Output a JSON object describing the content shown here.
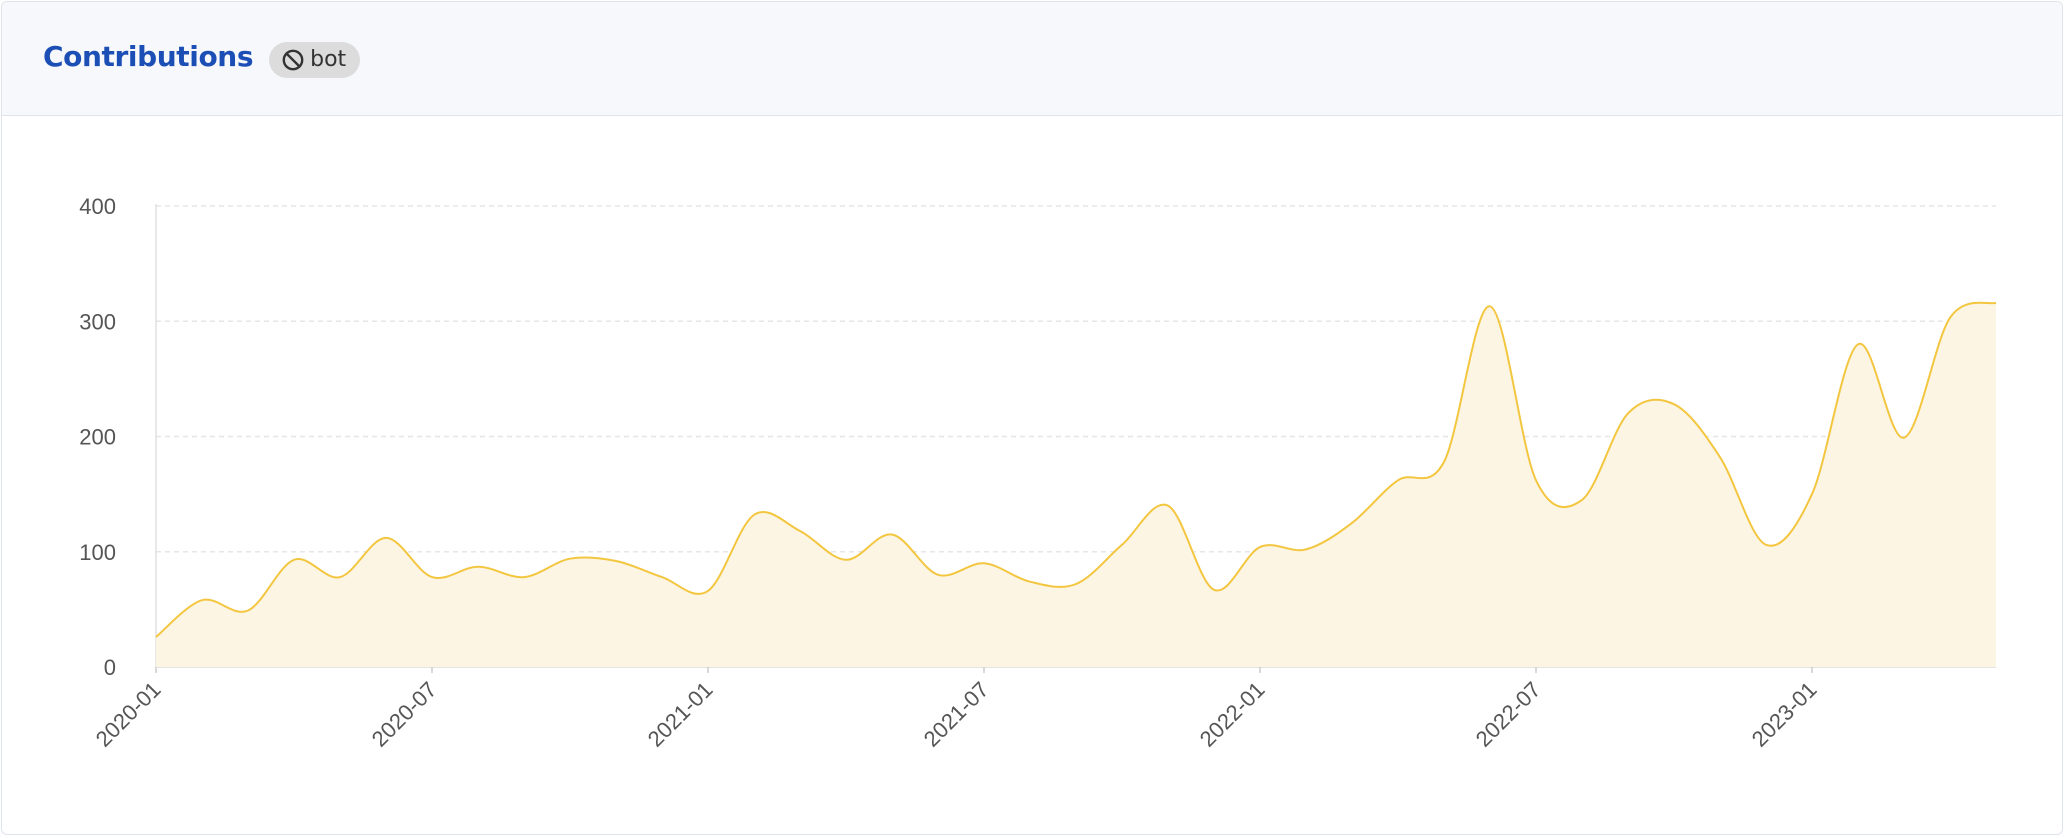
{
  "header": {
    "title": "Contributions",
    "badge_label": "bot",
    "badge_icon": "ban-icon"
  },
  "colors": {
    "title": "#1b4fb5",
    "line": "#f3c640",
    "fill": "#fdf5e4",
    "grid": "#e6e6e6"
  },
  "chart_data": {
    "type": "area",
    "title": "",
    "xlabel": "",
    "ylabel": "",
    "ylim": [
      0,
      400
    ],
    "yticks": [
      0,
      100,
      200,
      300,
      400
    ],
    "grid": true,
    "xtick_labels": [
      "2020-01",
      "2020-07",
      "2021-01",
      "2021-07",
      "2022-01",
      "2022-07",
      "2023-01"
    ],
    "x": [
      "2020-01",
      "2020-02",
      "2020-03",
      "2020-04",
      "2020-05",
      "2020-06",
      "2020-07",
      "2020-08",
      "2020-09",
      "2020-10",
      "2020-11",
      "2020-12",
      "2021-01",
      "2021-02",
      "2021-03",
      "2021-04",
      "2021-05",
      "2021-06",
      "2021-07",
      "2021-08",
      "2021-09",
      "2021-10",
      "2021-11",
      "2021-12",
      "2022-01",
      "2022-02",
      "2022-03",
      "2022-04",
      "2022-05",
      "2022-06",
      "2022-07",
      "2022-08",
      "2022-09",
      "2022-10",
      "2022-11",
      "2022-12",
      "2023-01",
      "2023-02",
      "2023-03",
      "2023-04",
      "2023-05"
    ],
    "series": [
      {
        "values": [
          26,
          58,
          49,
          93,
          78,
          112,
          78,
          87,
          78,
          94,
          92,
          78,
          66,
          132,
          118,
          93,
          115,
          80,
          90,
          74,
          72,
          106,
          140,
          67,
          104,
          102,
          125,
          162,
          178,
          313,
          162,
          145,
          220,
          228,
          182,
          106,
          150,
          280,
          199,
          303,
          316
        ]
      }
    ]
  }
}
